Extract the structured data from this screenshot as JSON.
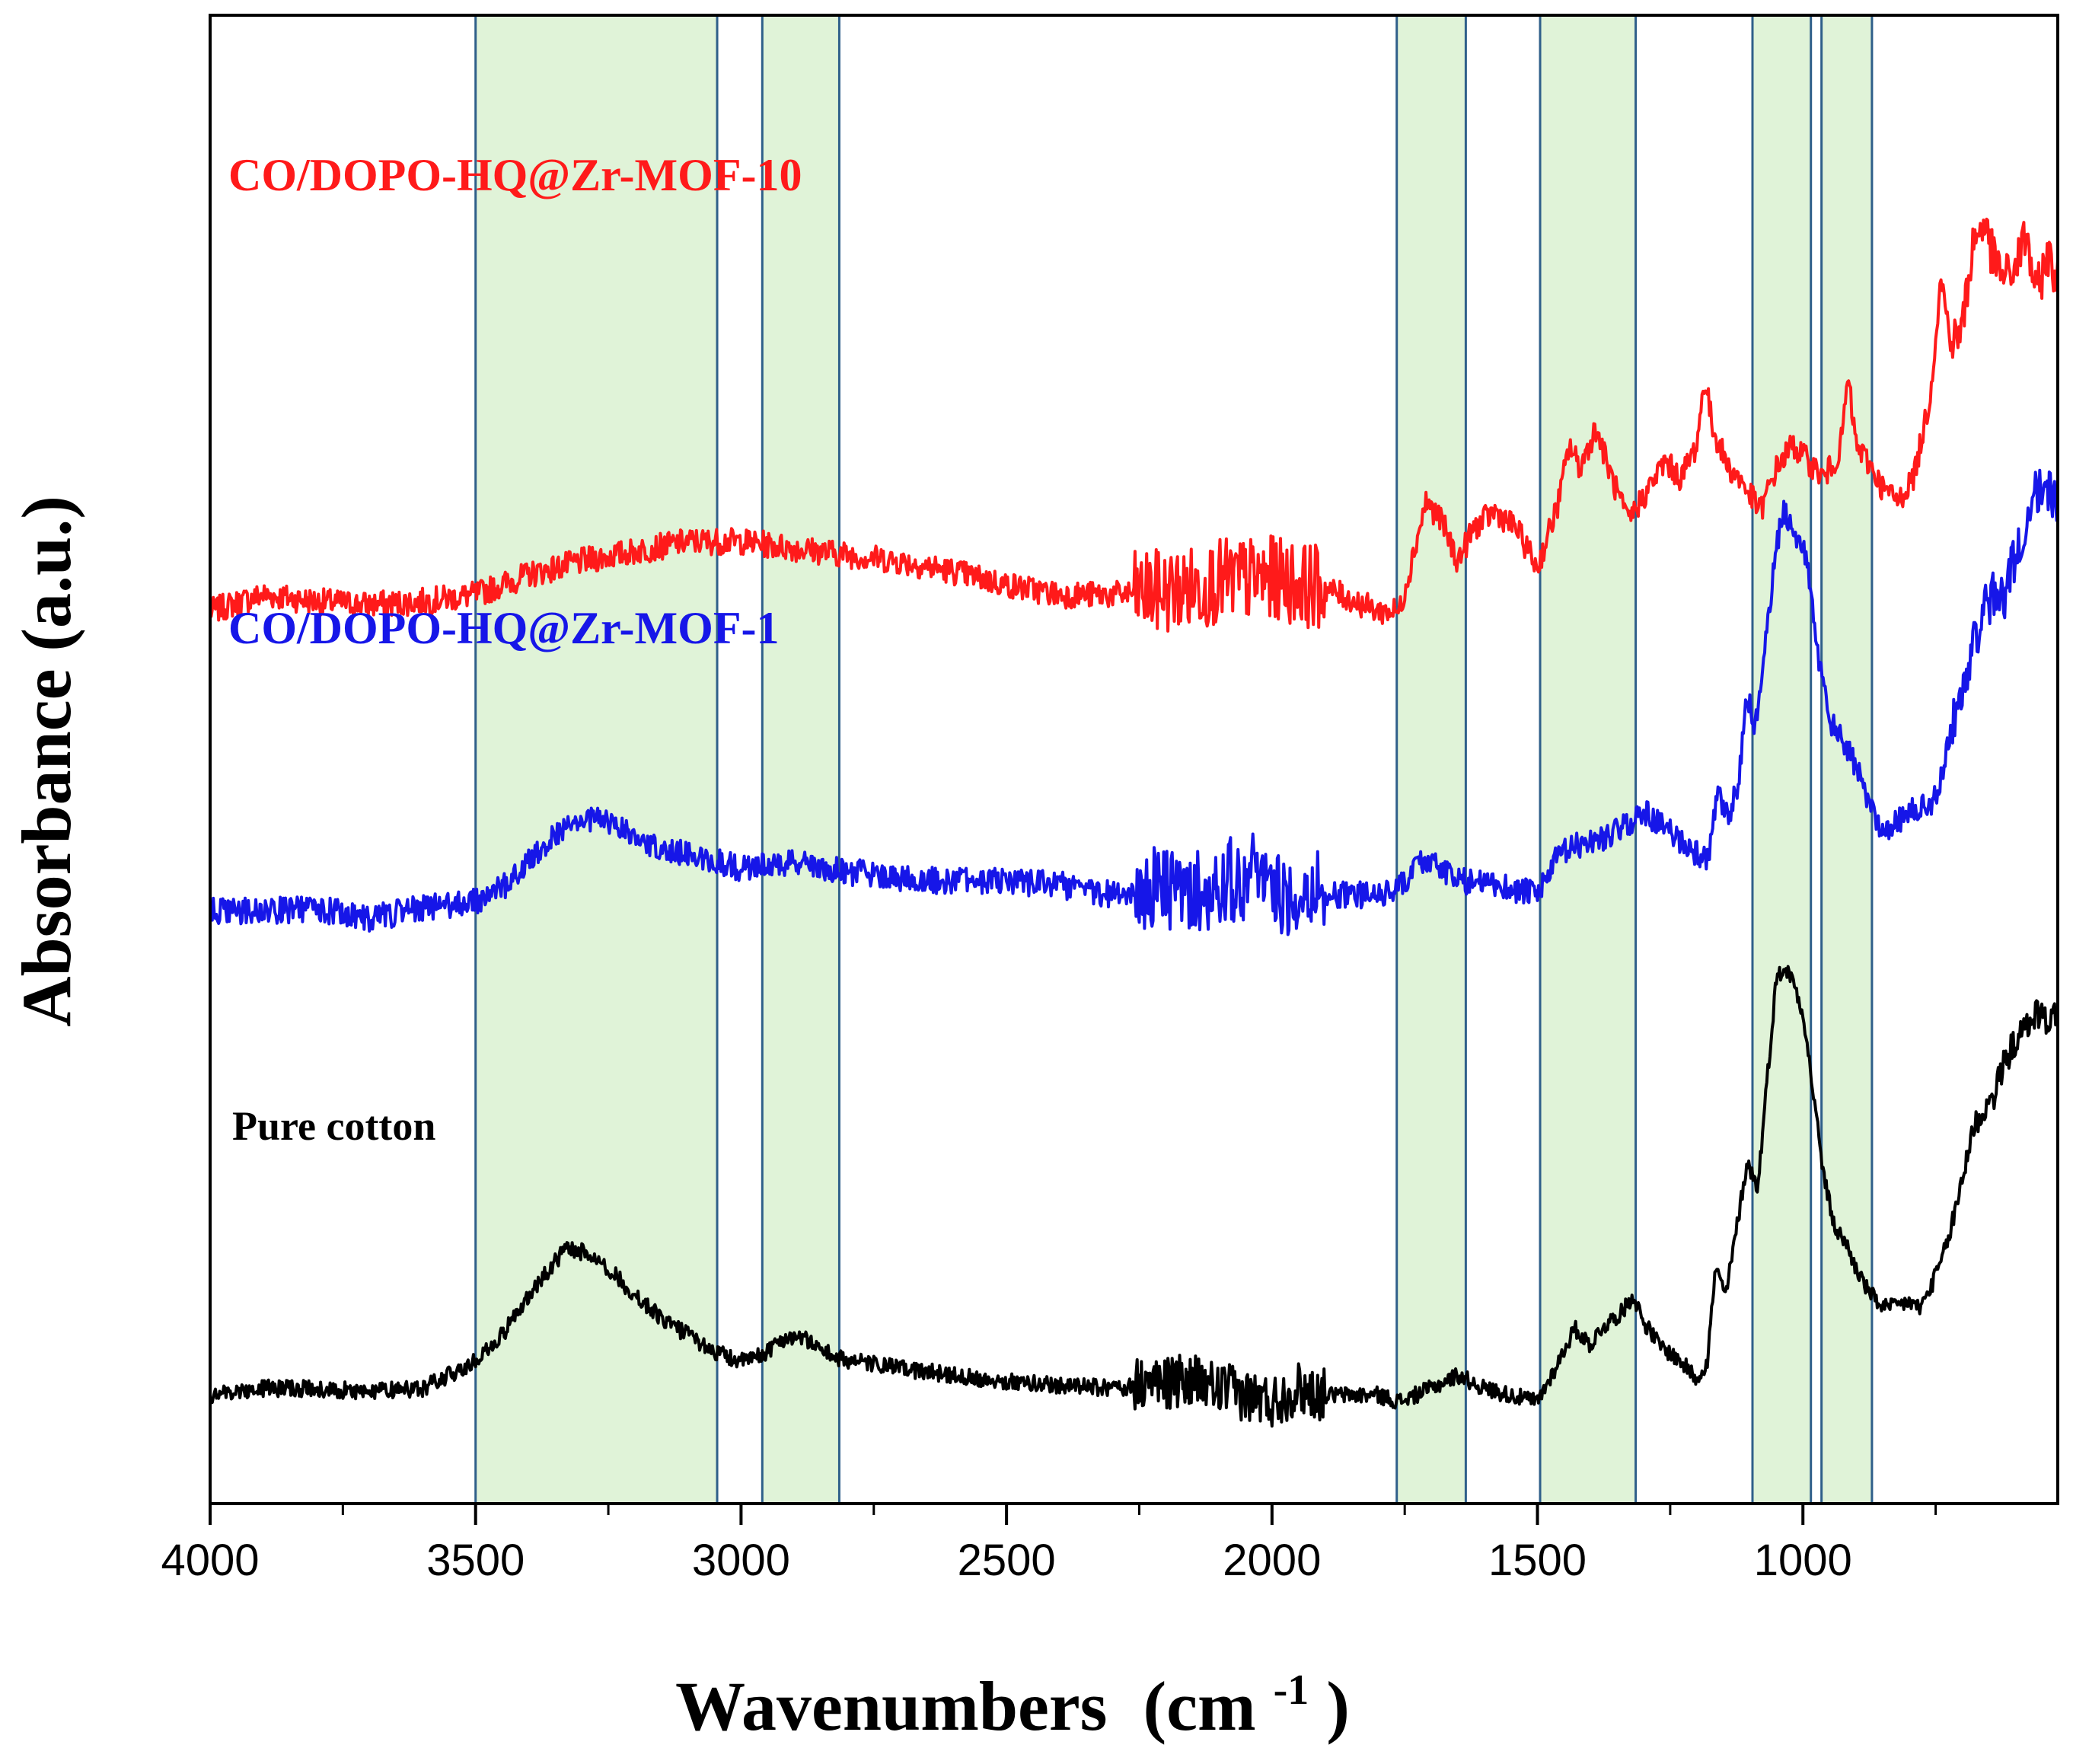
{
  "chart_data": {
    "type": "line",
    "title": "",
    "xlabel": "Wavenumbers",
    "xlabel_unit_base": "(cm",
    "xlabel_unit_sup": "-1",
    "xlabel_unit_close": ")",
    "ylabel": "Absorbance (a.u.)",
    "xlim": [
      4000,
      520
    ],
    "x_reversed": true,
    "xticks": [
      4000,
      3500,
      3000,
      2500,
      2000,
      1500,
      1000
    ],
    "y_ticks_shown": false,
    "highlight_bands": [
      {
        "from": 3500,
        "to": 3045
      },
      {
        "from": 2960,
        "to": 2815
      },
      {
        "from": 1765,
        "to": 1635
      },
      {
        "from": 1495,
        "to": 1315
      },
      {
        "from": 1095,
        "to": 985
      },
      {
        "from": 965,
        "to": 870
      }
    ],
    "band_fill": "#e0f3d8",
    "band_edge": "#2f5f8a",
    "series": [
      {
        "name": "CO/DOPO-HQ@Zr-MOF-10",
        "color": "#ff1a1a",
        "noise": 0.04,
        "points": [
          [
            4000,
            2.55
          ],
          [
            3900,
            2.6
          ],
          [
            3800,
            2.58
          ],
          [
            3700,
            2.57
          ],
          [
            3600,
            2.58
          ],
          [
            3500,
            2.6
          ],
          [
            3400,
            2.66
          ],
          [
            3300,
            2.7
          ],
          [
            3200,
            2.73
          ],
          [
            3100,
            2.76
          ],
          [
            3000,
            2.76
          ],
          [
            2900,
            2.74
          ],
          [
            2800,
            2.72
          ],
          [
            2700,
            2.7
          ],
          [
            2600,
            2.67
          ],
          [
            2500,
            2.63
          ],
          [
            2400,
            2.6
          ],
          [
            2300,
            2.6
          ],
          [
            2200,
            2.61
          ],
          [
            2150,
            2.62
          ],
          [
            2100,
            2.64
          ],
          [
            2000,
            2.65
          ],
          [
            1900,
            2.62
          ],
          [
            1800,
            2.55
          ],
          [
            1760,
            2.55
          ],
          [
            1740,
            2.68
          ],
          [
            1710,
            2.88
          ],
          [
            1680,
            2.82
          ],
          [
            1650,
            2.7
          ],
          [
            1620,
            2.8
          ],
          [
            1580,
            2.85
          ],
          [
            1540,
            2.8
          ],
          [
            1500,
            2.68
          ],
          [
            1460,
            2.88
          ],
          [
            1440,
            3.05
          ],
          [
            1420,
            2.98
          ],
          [
            1390,
            3.1
          ],
          [
            1360,
            2.95
          ],
          [
            1330,
            2.82
          ],
          [
            1290,
            2.92
          ],
          [
            1260,
            3.0
          ],
          [
            1230,
            2.95
          ],
          [
            1200,
            3.05
          ],
          [
            1185,
            3.25
          ],
          [
            1170,
            3.1
          ],
          [
            1140,
            2.98
          ],
          [
            1120,
            2.95
          ],
          [
            1100,
            2.9
          ],
          [
            1080,
            2.85
          ],
          [
            1050,
            2.98
          ],
          [
            1020,
            3.05
          ],
          [
            990,
            3.0
          ],
          [
            960,
            2.95
          ],
          [
            930,
            3.03
          ],
          [
            915,
            3.25
          ],
          [
            900,
            3.05
          ],
          [
            870,
            2.98
          ],
          [
            850,
            2.92
          ],
          [
            820,
            2.88
          ],
          [
            790,
            2.96
          ],
          [
            760,
            3.2
          ],
          [
            740,
            3.55
          ],
          [
            720,
            3.35
          ],
          [
            700,
            3.4
          ],
          [
            680,
            3.65
          ],
          [
            660,
            3.72
          ],
          [
            640,
            3.6
          ],
          [
            620,
            3.55
          ],
          [
            600,
            3.58
          ],
          [
            580,
            3.68
          ],
          [
            560,
            3.5
          ],
          [
            540,
            3.62
          ],
          [
            520,
            3.55
          ]
        ]
      },
      {
        "name": "CO/DOPO-HQ@Zr-MOF-1",
        "color": "#1616e8",
        "noise": 0.04,
        "points": [
          [
            4000,
            1.65
          ],
          [
            3900,
            1.65
          ],
          [
            3800,
            1.66
          ],
          [
            3700,
            1.63
          ],
          [
            3600,
            1.66
          ],
          [
            3500,
            1.68
          ],
          [
            3450,
            1.72
          ],
          [
            3400,
            1.8
          ],
          [
            3350,
            1.88
          ],
          [
            3300,
            1.93
          ],
          [
            3250,
            1.92
          ],
          [
            3200,
            1.87
          ],
          [
            3100,
            1.82
          ],
          [
            3000,
            1.78
          ],
          [
            2900,
            1.8
          ],
          [
            2800,
            1.77
          ],
          [
            2700,
            1.75
          ],
          [
            2600,
            1.74
          ],
          [
            2500,
            1.74
          ],
          [
            2400,
            1.73
          ],
          [
            2300,
            1.7
          ],
          [
            2250,
            1.72
          ],
          [
            2200,
            1.72
          ],
          [
            2150,
            1.7
          ],
          [
            2100,
            1.74
          ],
          [
            2050,
            1.75
          ],
          [
            2020,
            1.8
          ],
          [
            2000,
            1.68
          ],
          [
            1950,
            1.72
          ],
          [
            1900,
            1.7
          ],
          [
            1800,
            1.7
          ],
          [
            1760,
            1.72
          ],
          [
            1720,
            1.8
          ],
          [
            1700,
            1.8
          ],
          [
            1650,
            1.74
          ],
          [
            1600,
            1.74
          ],
          [
            1550,
            1.72
          ],
          [
            1500,
            1.7
          ],
          [
            1460,
            1.82
          ],
          [
            1420,
            1.85
          ],
          [
            1380,
            1.87
          ],
          [
            1340,
            1.9
          ],
          [
            1300,
            1.95
          ],
          [
            1260,
            1.9
          ],
          [
            1220,
            1.85
          ],
          [
            1180,
            1.8
          ],
          [
            1160,
            2.0
          ],
          [
            1140,
            1.92
          ],
          [
            1120,
            2.05
          ],
          [
            1105,
            2.3
          ],
          [
            1090,
            2.2
          ],
          [
            1070,
            2.45
          ],
          [
            1050,
            2.75
          ],
          [
            1035,
            2.85
          ],
          [
            1020,
            2.8
          ],
          [
            1000,
            2.75
          ],
          [
            985,
            2.62
          ],
          [
            970,
            2.4
          ],
          [
            950,
            2.22
          ],
          [
            920,
            2.15
          ],
          [
            900,
            2.08
          ],
          [
            880,
            2.0
          ],
          [
            860,
            1.92
          ],
          [
            840,
            1.9
          ],
          [
            820,
            1.92
          ],
          [
            800,
            1.95
          ],
          [
            780,
            1.96
          ],
          [
            760,
            1.96
          ],
          [
            740,
            2.05
          ],
          [
            720,
            2.2
          ],
          [
            700,
            2.3
          ],
          [
            680,
            2.45
          ],
          [
            660,
            2.55
          ],
          [
            640,
            2.6
          ],
          [
            620,
            2.6
          ],
          [
            600,
            2.72
          ],
          [
            580,
            2.78
          ],
          [
            565,
            2.95
          ],
          [
            555,
            2.9
          ],
          [
            540,
            2.92
          ],
          [
            520,
            2.88
          ]
        ]
      },
      {
        "name": "Pure cotton",
        "color": "#000000",
        "noise": 0.025,
        "points": [
          [
            4000,
            0.2
          ],
          [
            3900,
            0.22
          ],
          [
            3800,
            0.22
          ],
          [
            3700,
            0.21
          ],
          [
            3600,
            0.22
          ],
          [
            3550,
            0.26
          ],
          [
            3500,
            0.3
          ],
          [
            3450,
            0.38
          ],
          [
            3400,
            0.5
          ],
          [
            3350,
            0.6
          ],
          [
            3330,
            0.64
          ],
          [
            3300,
            0.63
          ],
          [
            3270,
            0.61
          ],
          [
            3250,
            0.58
          ],
          [
            3200,
            0.5
          ],
          [
            3150,
            0.43
          ],
          [
            3100,
            0.38
          ],
          [
            3050,
            0.33
          ],
          [
            3000,
            0.3
          ],
          [
            2960,
            0.32
          ],
          [
            2930,
            0.36
          ],
          [
            2900,
            0.38
          ],
          [
            2870,
            0.36
          ],
          [
            2820,
            0.31
          ],
          [
            2700,
            0.28
          ],
          [
            2600,
            0.26
          ],
          [
            2500,
            0.24
          ],
          [
            2400,
            0.23
          ],
          [
            2300,
            0.22
          ],
          [
            2200,
            0.24
          ],
          [
            2150,
            0.24
          ],
          [
            2100,
            0.22
          ],
          [
            2050,
            0.2
          ],
          [
            2000,
            0.18
          ],
          [
            1950,
            0.22
          ],
          [
            1900,
            0.2
          ],
          [
            1800,
            0.2
          ],
          [
            1760,
            0.18
          ],
          [
            1700,
            0.22
          ],
          [
            1650,
            0.26
          ],
          [
            1600,
            0.22
          ],
          [
            1550,
            0.2
          ],
          [
            1500,
            0.18
          ],
          [
            1460,
            0.3
          ],
          [
            1430,
            0.4
          ],
          [
            1400,
            0.35
          ],
          [
            1380,
            0.4
          ],
          [
            1340,
            0.45
          ],
          [
            1320,
            0.5
          ],
          [
            1300,
            0.42
          ],
          [
            1270,
            0.35
          ],
          [
            1230,
            0.3
          ],
          [
            1200,
            0.25
          ],
          [
            1180,
            0.3
          ],
          [
            1165,
            0.58
          ],
          [
            1145,
            0.5
          ],
          [
            1120,
            0.75
          ],
          [
            1105,
            0.9
          ],
          [
            1085,
            0.82
          ],
          [
            1070,
            1.1
          ],
          [
            1050,
            1.45
          ],
          [
            1035,
            1.48
          ],
          [
            1020,
            1.45
          ],
          [
            1000,
            1.35
          ],
          [
            980,
            1.1
          ],
          [
            960,
            0.85
          ],
          [
            940,
            0.7
          ],
          [
            920,
            0.66
          ],
          [
            900,
            0.58
          ],
          [
            880,
            0.52
          ],
          [
            860,
            0.48
          ],
          [
            840,
            0.46
          ],
          [
            820,
            0.47
          ],
          [
            800,
            0.48
          ],
          [
            780,
            0.46
          ],
          [
            760,
            0.52
          ],
          [
            740,
            0.6
          ],
          [
            720,
            0.7
          ],
          [
            700,
            0.85
          ],
          [
            680,
            1.0
          ],
          [
            660,
            1.05
          ],
          [
            640,
            1.1
          ],
          [
            620,
            1.2
          ],
          [
            600,
            1.26
          ],
          [
            580,
            1.3
          ],
          [
            560,
            1.35
          ],
          [
            540,
            1.32
          ],
          [
            520,
            1.35
          ]
        ]
      }
    ]
  }
}
